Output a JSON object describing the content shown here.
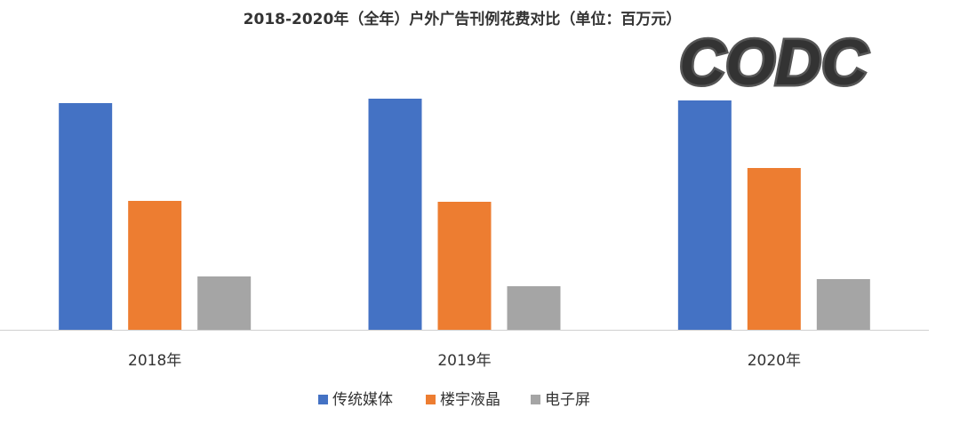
{
  "chart_data": {
    "type": "bar",
    "title": "2018-2020年（全年）户外广告刊例花费对比（单位：百万元）",
    "watermark": "CODC",
    "categories": [
      "2018年",
      "2019年",
      "2020年"
    ],
    "series": [
      {
        "name": "传统媒体",
        "color": "#4472c4",
        "values": [
          255,
          260,
          258
        ]
      },
      {
        "name": "楼宇液晶",
        "color": "#ed7d31",
        "values": [
          145,
          144,
          182
        ]
      },
      {
        "name": "电子屏",
        "color": "#a5a5a5",
        "values": [
          60,
          49,
          57
        ]
      }
    ],
    "ylim": [
      0,
      330
    ]
  }
}
